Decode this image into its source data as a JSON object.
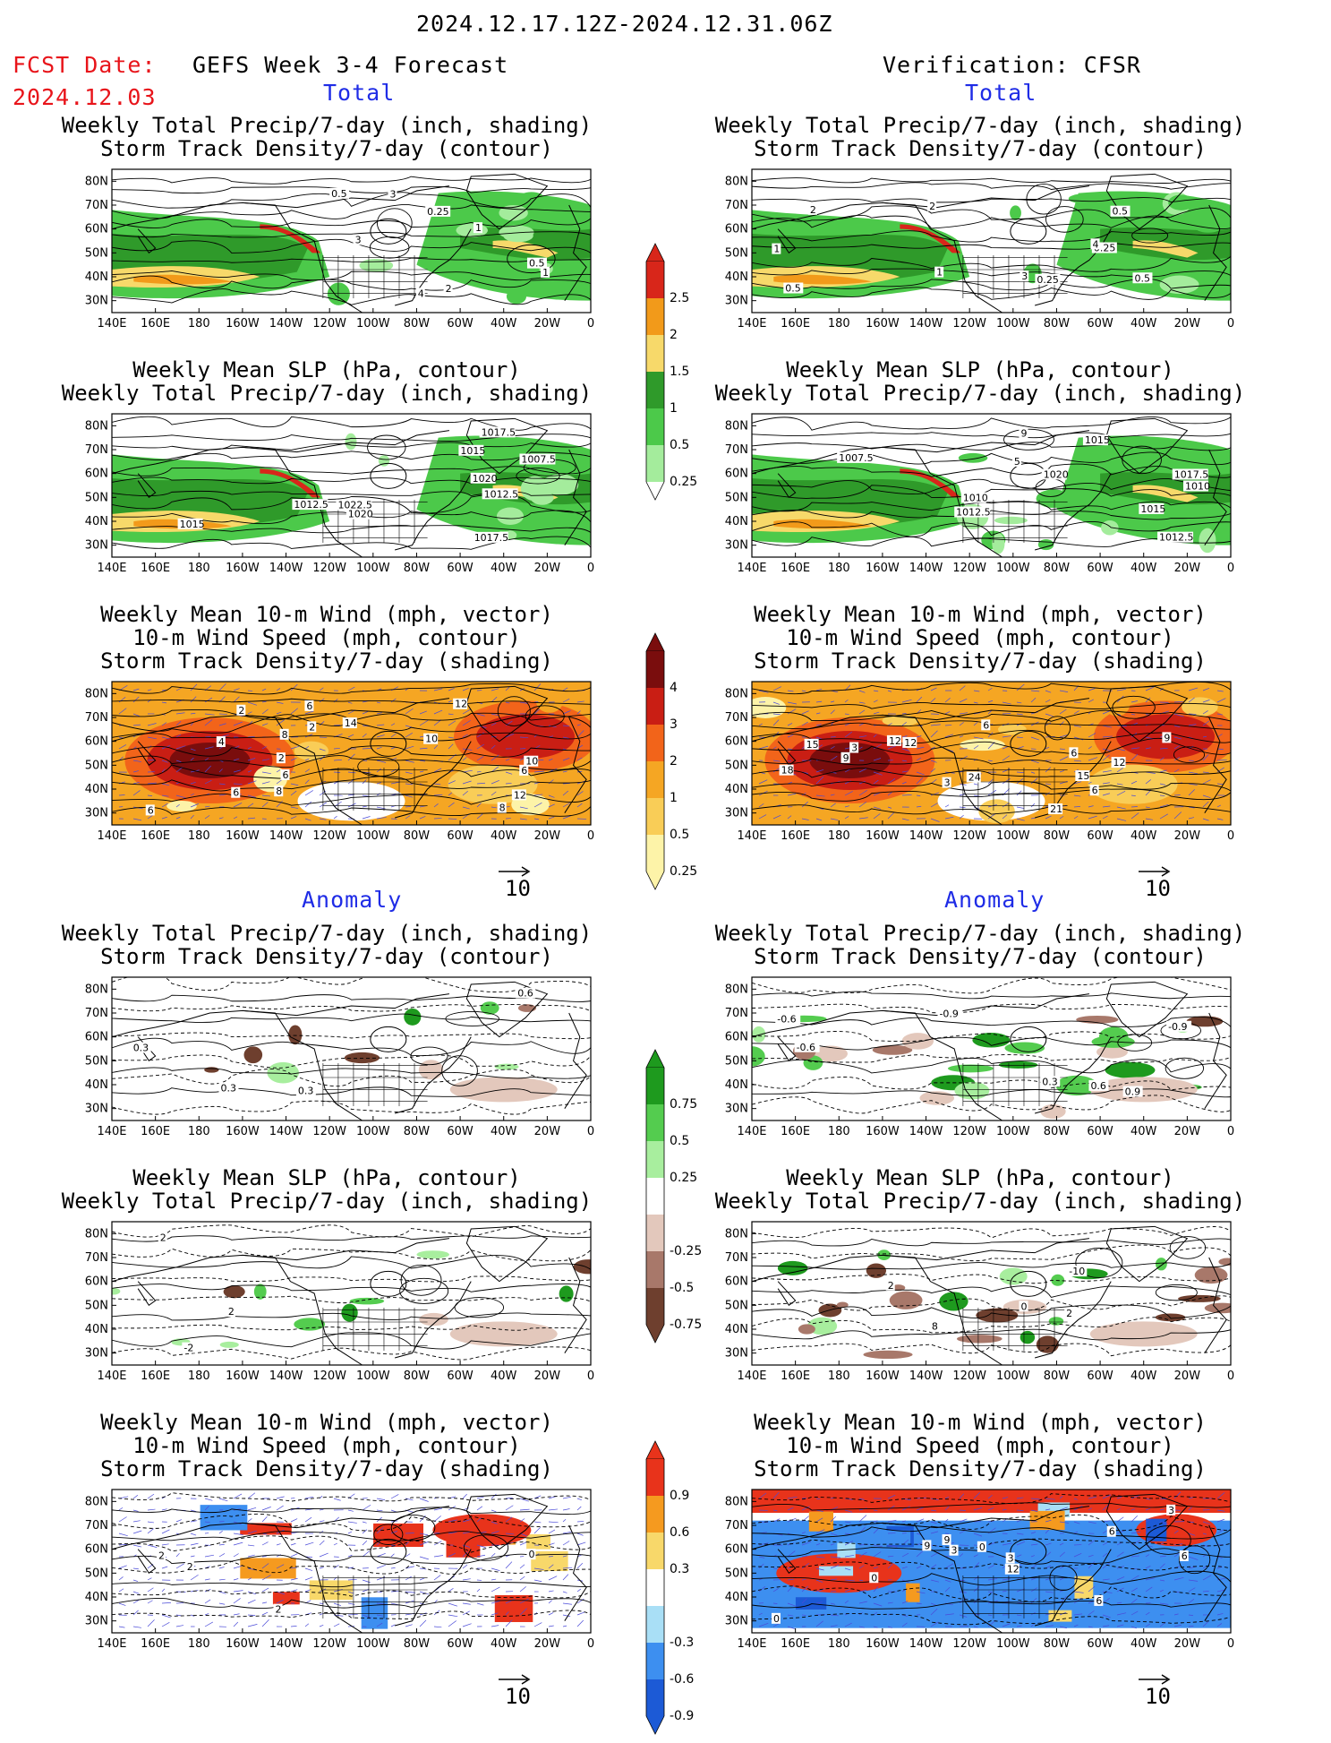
{
  "header": {
    "date_range": "2024.12.17.12Z-2024.12.31.06Z",
    "fcst_label": "FCST Date:",
    "fcst_date": "2024.12.03",
    "left_title": "GEFS Week 3-4 Forecast",
    "right_title": "Verification: CFSR",
    "total_label": "Total",
    "anomaly_label": "Anomaly"
  },
  "axes": {
    "lat_ticks": [
      "80N",
      "70N",
      "60N",
      "50N",
      "40N",
      "30N"
    ],
    "lon_ticks": [
      "140E",
      "160E",
      "180",
      "160W",
      "140W",
      "120W",
      "100W",
      "80W",
      "60W",
      "40W",
      "20W",
      "0"
    ]
  },
  "vector_ref": "10",
  "panel_titles": {
    "precip_storm": [
      "Weekly Total Precip/7-day (inch, shading)",
      "Storm Track Density/7-day (contour)"
    ],
    "slp_precip": [
      "Weekly Mean SLP (hPa, contour)",
      "Weekly Total Precip/7-day (inch, shading)"
    ],
    "wind_storm": [
      "Weekly Mean 10-m Wind (mph, vector)",
      "10-m Wind Speed (mph, contour)",
      "Storm Track Density/7-day (shading)"
    ]
  },
  "colorbars": {
    "total_precip": {
      "labels": [
        "2.5",
        "2",
        "1.5",
        "1",
        "0.5",
        "0.25"
      ],
      "colors": [
        "#d8261a",
        "#f29a1a",
        "#f7d96a",
        "#2f9a2a",
        "#4cc94a",
        "#a4ec9c"
      ]
    },
    "total_storm": {
      "labels": [
        "4",
        "3",
        "2",
        "1",
        "0.5",
        "0.25"
      ],
      "colors": [
        "#7a0d0d",
        "#c91e14",
        "#f2641a",
        "#f5a623",
        "#f9cd57",
        "#fdf3a8"
      ]
    },
    "anom_precip": {
      "labels": [
        "0.75",
        "0.5",
        "0.25",
        "-0.25",
        "-0.5",
        "-0.75"
      ],
      "colors": [
        "#1e9a1e",
        "#54cc4f",
        "#a8ee9e",
        "#ffffff",
        "#e3c8bc",
        "#a8786a",
        "#6e3f2e"
      ]
    },
    "anom_storm": {
      "labels": [
        "0.9",
        "0.6",
        "0.3",
        "-0.3",
        "-0.6",
        "-0.9"
      ],
      "colors": [
        "#e8331b",
        "#f59a1f",
        "#f8d86a",
        "#ffffff",
        "#a9dff6",
        "#3d8ff0",
        "#1c5ad6"
      ]
    }
  },
  "panels": {
    "left_total_precip": {
      "labels": [
        "4",
        "3",
        "2",
        "1",
        "0.5",
        "0.5",
        "0.25",
        "1",
        "3"
      ]
    },
    "left_total_slp": {
      "labels": [
        "1020",
        "1017.5",
        "1020",
        "1012.5",
        "1007.5",
        "1022.5",
        "1017.5",
        "1015",
        "1012.5",
        "1015"
      ]
    },
    "left_total_wind": {
      "labels": [
        "2",
        "6",
        "8",
        "10",
        "12",
        "14",
        "6",
        "2",
        "6",
        "6",
        "10",
        "6",
        "8",
        "12",
        "8",
        "4",
        "2"
      ]
    },
    "right_total_precip": {
      "labels": [
        "0.5",
        "0.25",
        "2",
        "3",
        "4",
        "0.25",
        "0.5",
        "0.5",
        "2",
        "1",
        "1"
      ]
    },
    "right_total_slp": {
      "labels": [
        "1015",
        "1010",
        "1012.5",
        "1010",
        "1015",
        "1020",
        "1012.5",
        "1007.5",
        "1017.5",
        "9",
        "5"
      ]
    },
    "right_total_wind": {
      "labels": [
        "6",
        "3",
        "6",
        "12",
        "15",
        "21",
        "18",
        "24",
        "12",
        "9",
        "6",
        "12",
        "15",
        "9",
        "3"
      ]
    },
    "left_anom_precip": {
      "labels": [
        "0.3",
        "0.6",
        "0.3",
        "0.3"
      ]
    },
    "left_anom_slp": {
      "labels": [
        "2",
        "-2",
        "2"
      ]
    },
    "left_anom_wind": {
      "labels": [
        "2",
        "2",
        "2",
        "0"
      ]
    },
    "right_anom_precip": {
      "labels": [
        "0.6",
        "-0.6",
        "0.3",
        "0.9",
        "-0.9",
        "-0.9",
        "-0.6"
      ]
    },
    "right_anom_slp": {
      "labels": [
        "0",
        "2",
        "-10",
        "2",
        "8"
      ]
    },
    "right_anom_wind": {
      "labels": [
        "3",
        "0",
        "6",
        "3",
        "9",
        "6",
        "0",
        "12",
        "3",
        "6",
        "9",
        "0"
      ]
    }
  }
}
